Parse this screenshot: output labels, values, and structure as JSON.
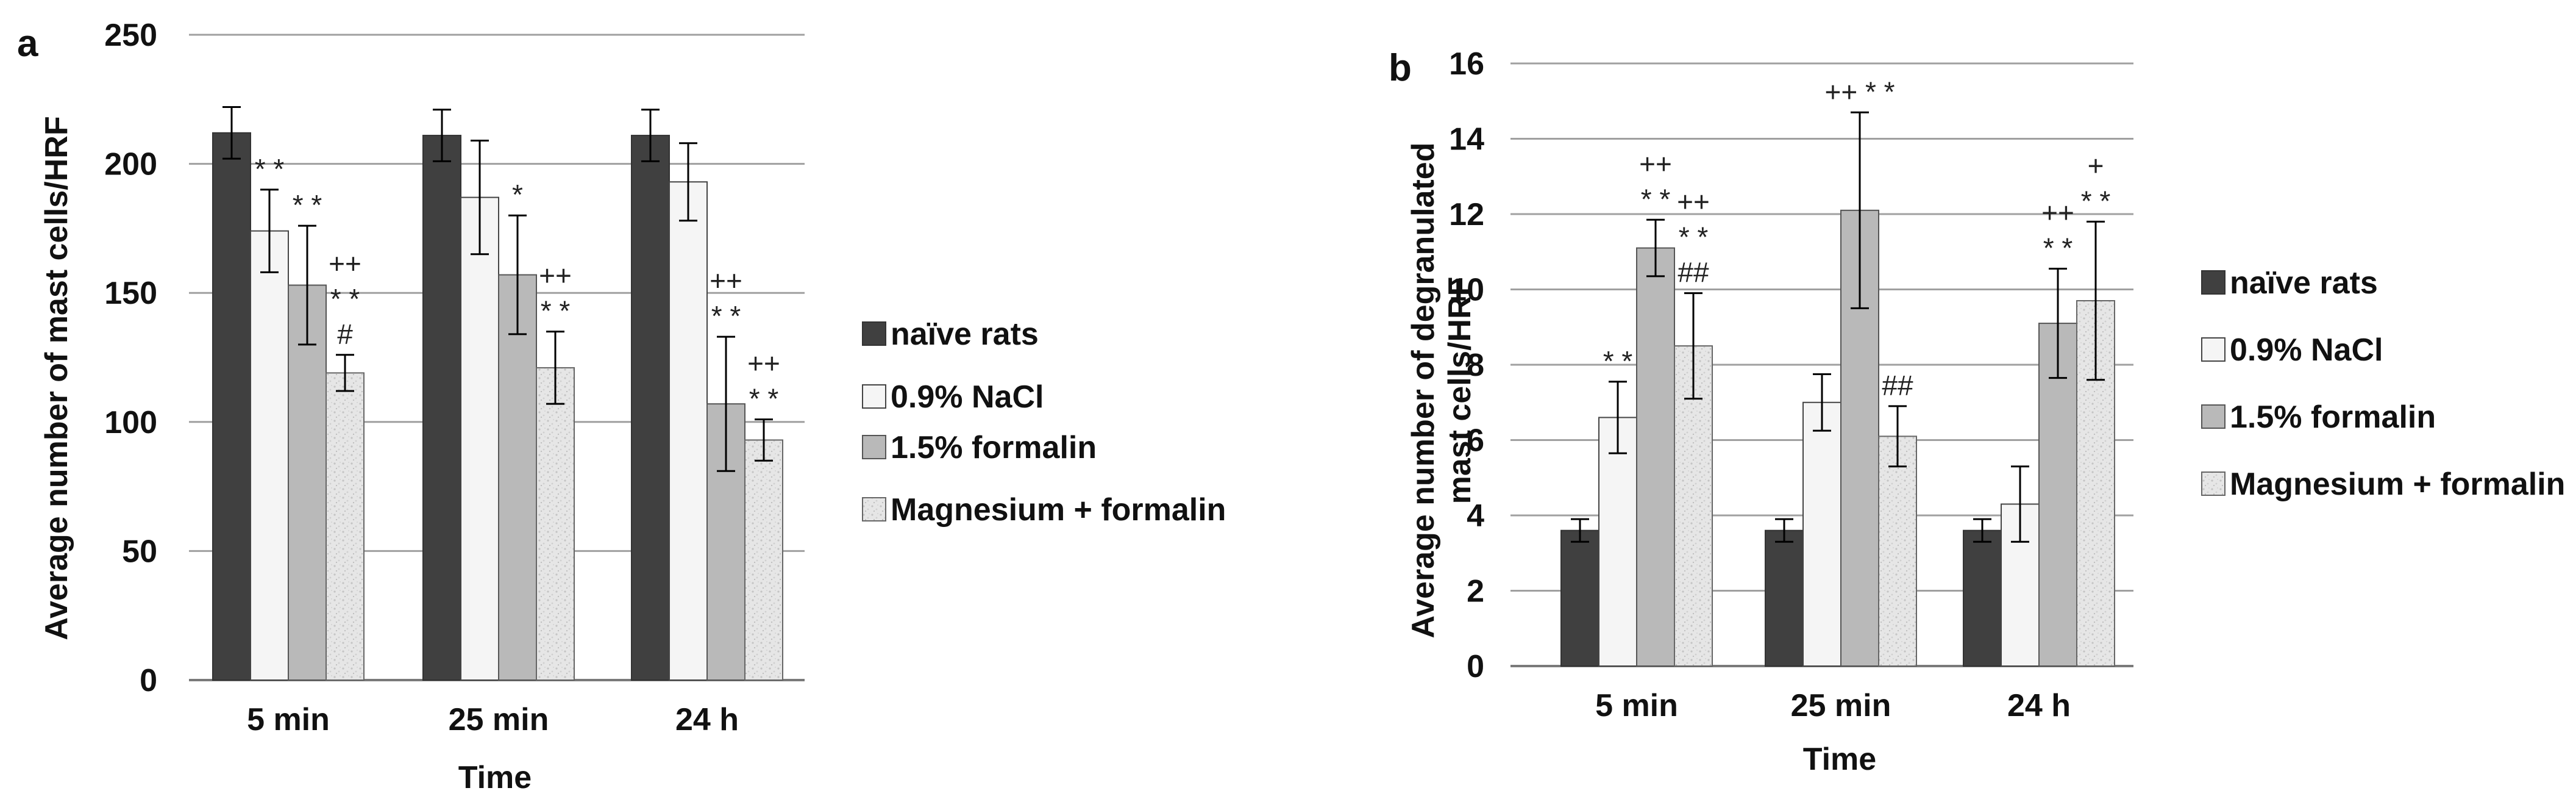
{
  "colors": {
    "series": [
      "#404040",
      "#f5f5f5",
      "#b9b9b9",
      "#e2e2e2"
    ],
    "grid": "#a0a0a0",
    "text": "#111111"
  },
  "chart_data": [
    {
      "type": "bar",
      "panel_label": "a",
      "title": "",
      "xlabel": "Time",
      "ylabel": "Average number of mast cells/HRF",
      "ylim": [
        0,
        250
      ],
      "yticks": [
        "0",
        "50",
        "100",
        "150",
        "200",
        "250"
      ],
      "categories": [
        "5 min",
        "25 min",
        "24 h"
      ],
      "series": [
        {
          "name": "naïve rats",
          "values": [
            212,
            211,
            211
          ],
          "errors": [
            10,
            10,
            10
          ]
        },
        {
          "name": "0.9% NaCl",
          "values": [
            174,
            187,
            193
          ],
          "errors": [
            16,
            22,
            15
          ]
        },
        {
          "name": "1.5% formalin",
          "values": [
            153,
            157,
            107
          ],
          "errors": [
            23,
            23,
            26
          ]
        },
        {
          "name": "Magnesium + formalin",
          "values": [
            119,
            121,
            93
          ],
          "errors": [
            7,
            14,
            8
          ]
        }
      ],
      "annotations": [
        {
          "category": 0,
          "series": 1,
          "lines": [
            "* *"
          ]
        },
        {
          "category": 0,
          "series": 2,
          "lines": [
            "* *"
          ]
        },
        {
          "category": 0,
          "series": 3,
          "lines": [
            "++",
            "* *",
            "#"
          ]
        },
        {
          "category": 1,
          "series": 2,
          "lines": [
            "*"
          ]
        },
        {
          "category": 1,
          "series": 3,
          "lines": [
            "++",
            "* *"
          ]
        },
        {
          "category": 2,
          "series": 2,
          "lines": [
            "++",
            "* *"
          ]
        },
        {
          "category": 2,
          "series": 3,
          "lines": [
            "++",
            "* *"
          ]
        }
      ],
      "legend": [
        "naïve rats",
        "0.9% NaCl",
        "1.5% formalin",
        "Magnesium + formalin"
      ],
      "legend_position": "right",
      "grid": true
    },
    {
      "type": "bar",
      "panel_label": "b",
      "title": "",
      "xlabel": "Time",
      "ylabel_lines": [
        "Average number of degranulated",
        "mast cells/HRF"
      ],
      "ylim": [
        0,
        16
      ],
      "yticks": [
        "0",
        "2",
        "4",
        "6",
        "8",
        "10",
        "12",
        "14",
        "16"
      ],
      "categories": [
        "5 min",
        "25 min",
        "24 h"
      ],
      "series": [
        {
          "name": "naïve rats",
          "values": [
            3.6,
            3.6,
            3.6
          ],
          "errors": [
            0.3,
            0.3,
            0.3
          ]
        },
        {
          "name": "0.9% NaCl",
          "values": [
            6.6,
            7.0,
            4.3
          ],
          "errors": [
            0.95,
            0.75,
            1.0
          ]
        },
        {
          "name": "1.5% formalin",
          "values": [
            11.1,
            12.1,
            9.1
          ],
          "errors": [
            0.75,
            2.6,
            1.45
          ]
        },
        {
          "name": "Magnesium + formalin",
          "values": [
            8.5,
            6.1,
            9.7
          ],
          "errors": [
            1.4,
            0.8,
            2.1
          ]
        }
      ],
      "annotations": [
        {
          "category": 0,
          "series": 1,
          "lines": [
            "* *"
          ]
        },
        {
          "category": 0,
          "series": 2,
          "lines": [
            "++",
            "* *"
          ]
        },
        {
          "category": 0,
          "series": 3,
          "lines": [
            "++",
            "* *",
            "##"
          ]
        },
        {
          "category": 1,
          "series": 2,
          "lines": [
            "++ * *"
          ]
        },
        {
          "category": 1,
          "series": 3,
          "lines": [
            "##"
          ]
        },
        {
          "category": 2,
          "series": 2,
          "lines": [
            "++",
            "* *"
          ]
        },
        {
          "category": 2,
          "series": 3,
          "lines": [
            "+",
            "* *"
          ]
        }
      ],
      "legend": [
        "naïve rats",
        "0.9% NaCl",
        "1.5% formalin",
        "Magnesium + formalin"
      ],
      "legend_position": "right",
      "grid": true
    }
  ]
}
